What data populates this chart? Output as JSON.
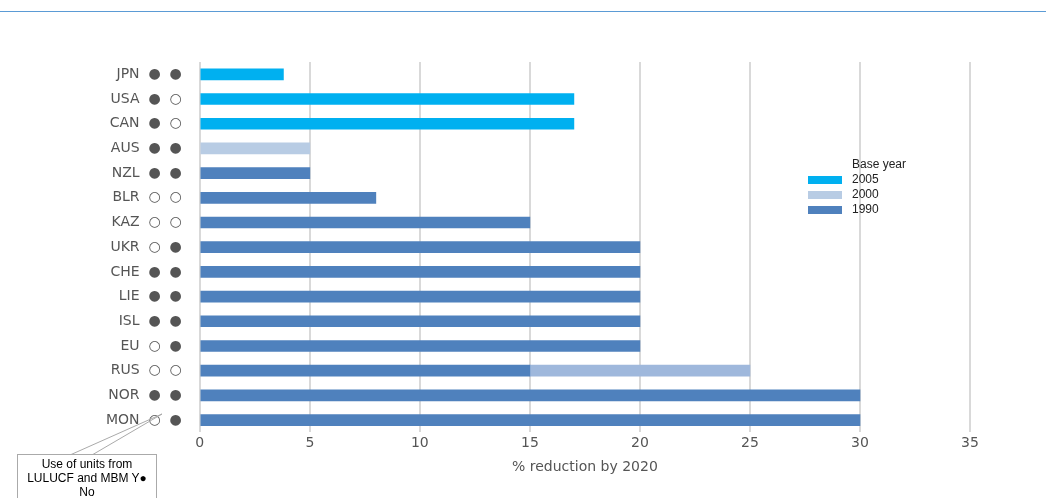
{
  "chart_data": {
    "type": "bar",
    "orientation": "horizontal",
    "stacked": true,
    "categories": [
      "JPN  ●  ●",
      "USA  ●  ○",
      "CAN  ●  ○",
      "AUS  ●  ●",
      "NZL  ●  ●",
      "BLR  ○  ○",
      "KAZ  ○  ○",
      "UKR  ○  ●",
      "CHE  ●  ●",
      "LIE  ●  ●",
      "ISL  ●  ●",
      "EU  ○  ●",
      "RUS  ○  ○",
      "NOR  ●  ●",
      "MON  ○  ●"
    ],
    "series": [
      {
        "name": "2005",
        "color": "#00b0f0",
        "values": [
          3.8,
          17,
          17,
          null,
          null,
          null,
          null,
          null,
          null,
          null,
          null,
          null,
          null,
          null,
          null
        ]
      },
      {
        "name": "2000",
        "color": "#b8cce4",
        "values": [
          null,
          null,
          null,
          5,
          null,
          null,
          null,
          null,
          null,
          null,
          null,
          null,
          null,
          null,
          null
        ]
      },
      {
        "name": "1990",
        "color": "#4f81bd",
        "values": [
          null,
          null,
          null,
          null,
          5,
          8,
          15,
          20,
          20,
          20,
          20,
          20,
          15,
          30,
          30
        ]
      },
      {
        "color": "#9fb8dc",
        "values": [
          null,
          null,
          null,
          null,
          null,
          null,
          null,
          null,
          null,
          null,
          null,
          null,
          10,
          null,
          null
        ]
      }
    ],
    "xlim": [
      0,
      35
    ],
    "xticks": [
      0,
      5,
      10,
      15,
      20,
      25,
      30,
      35
    ],
    "xlabel": "% reduction by 2020",
    "grid": "x",
    "legend": "right",
    "legend_title": "Base year",
    "annotations": [
      "Use of units from LULUCF and MBM Y● No"
    ]
  }
}
